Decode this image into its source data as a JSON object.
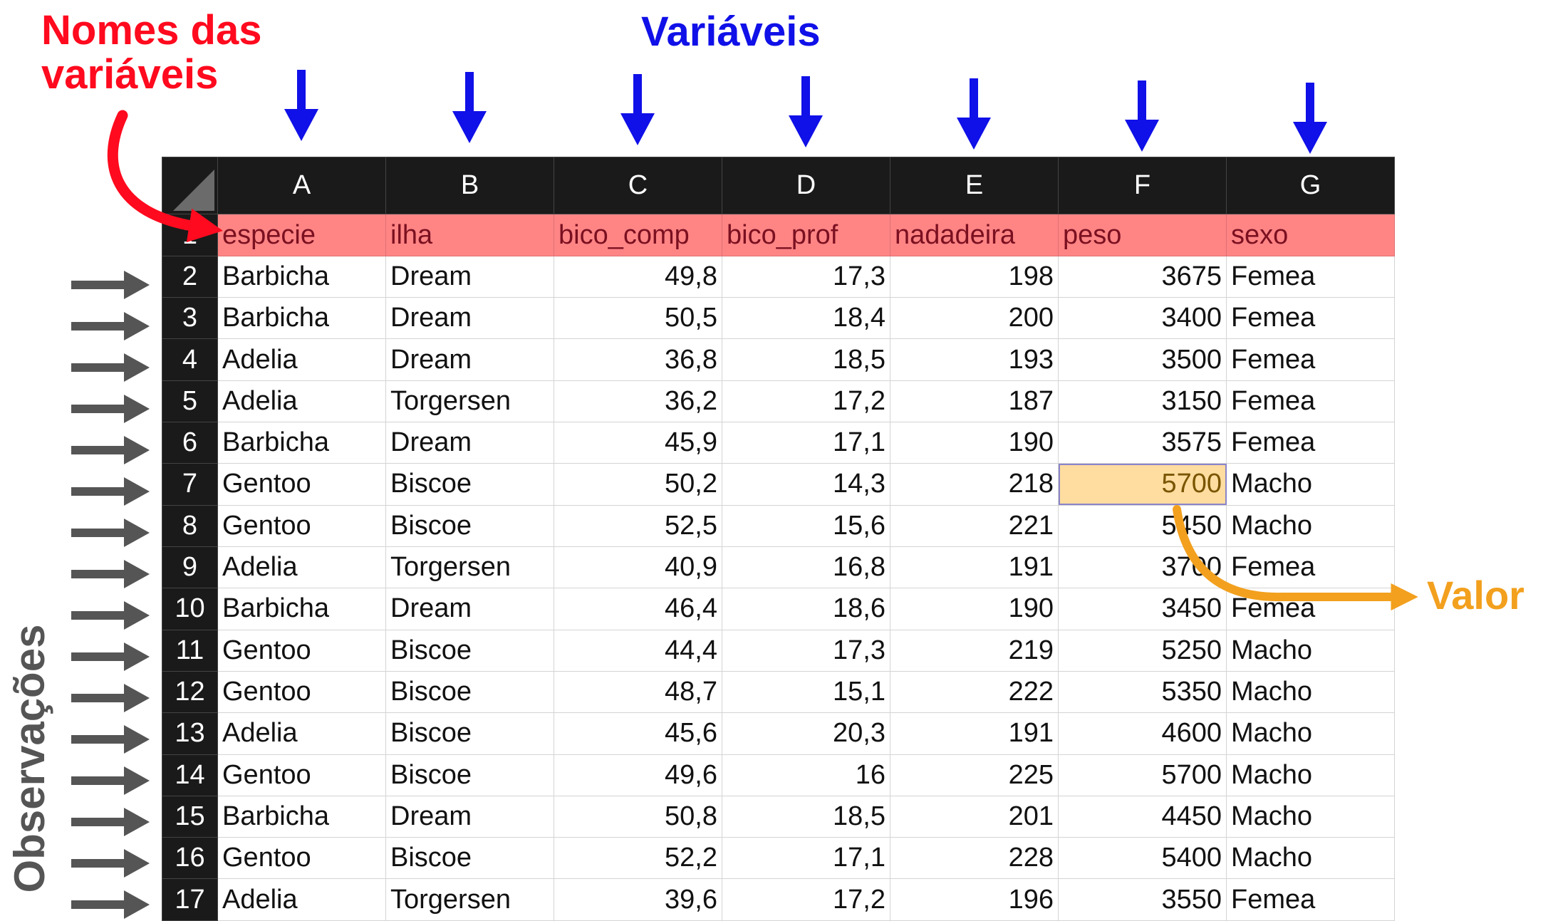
{
  "annotations": {
    "variable_names_line1": "Nomes das",
    "variable_names_line2": "variáveis",
    "variables": "Variáveis",
    "value": "Valor",
    "observations": "Observações"
  },
  "colors": {
    "red_label": "#ff0a1e",
    "blue_label": "#1010e8",
    "orange_label": "#f2a01e",
    "gray_arrow": "#555555",
    "header_row_fill": "#ff8585",
    "selected_cell_fill": "#ffdda0",
    "column_header_fill": "#1a1a1a"
  },
  "spreadsheet": {
    "column_letters": [
      "A",
      "B",
      "C",
      "D",
      "E",
      "F",
      "G"
    ],
    "header_row": {
      "row_number": "1",
      "cells": [
        "especie",
        "ilha",
        "bico_comp",
        "bico_prof",
        "nadadeira",
        "peso",
        "sexo"
      ]
    },
    "rows": [
      {
        "row_number": "2",
        "cells": [
          "Barbicha",
          "Dream",
          "49,8",
          "17,3",
          "198",
          "3675",
          "Femea"
        ]
      },
      {
        "row_number": "3",
        "cells": [
          "Barbicha",
          "Dream",
          "50,5",
          "18,4",
          "200",
          "3400",
          "Femea"
        ]
      },
      {
        "row_number": "4",
        "cells": [
          "Adelia",
          "Dream",
          "36,8",
          "18,5",
          "193",
          "3500",
          "Femea"
        ]
      },
      {
        "row_number": "5",
        "cells": [
          "Adelia",
          "Torgersen",
          "36,2",
          "17,2",
          "187",
          "3150",
          "Femea"
        ]
      },
      {
        "row_number": "6",
        "cells": [
          "Barbicha",
          "Dream",
          "45,9",
          "17,1",
          "190",
          "3575",
          "Femea"
        ]
      },
      {
        "row_number": "7",
        "cells": [
          "Gentoo",
          "Biscoe",
          "50,2",
          "14,3",
          "218",
          "5700",
          "Macho"
        ]
      },
      {
        "row_number": "8",
        "cells": [
          "Gentoo",
          "Biscoe",
          "52,5",
          "15,6",
          "221",
          "5450",
          "Macho"
        ]
      },
      {
        "row_number": "9",
        "cells": [
          "Adelia",
          "Torgersen",
          "40,9",
          "16,8",
          "191",
          "3700",
          "Femea"
        ]
      },
      {
        "row_number": "10",
        "cells": [
          "Barbicha",
          "Dream",
          "46,4",
          "18,6",
          "190",
          "3450",
          "Femea"
        ]
      },
      {
        "row_number": "11",
        "cells": [
          "Gentoo",
          "Biscoe",
          "44,4",
          "17,3",
          "219",
          "5250",
          "Macho"
        ]
      },
      {
        "row_number": "12",
        "cells": [
          "Gentoo",
          "Biscoe",
          "48,7",
          "15,1",
          "222",
          "5350",
          "Macho"
        ]
      },
      {
        "row_number": "13",
        "cells": [
          "Adelia",
          "Biscoe",
          "45,6",
          "20,3",
          "191",
          "4600",
          "Macho"
        ]
      },
      {
        "row_number": "14",
        "cells": [
          "Gentoo",
          "Biscoe",
          "49,6",
          "16",
          "225",
          "5700",
          "Macho"
        ]
      },
      {
        "row_number": "15",
        "cells": [
          "Barbicha",
          "Dream",
          "50,8",
          "18,5",
          "201",
          "4450",
          "Macho"
        ]
      },
      {
        "row_number": "16",
        "cells": [
          "Gentoo",
          "Biscoe",
          "52,2",
          "17,1",
          "228",
          "5400",
          "Macho"
        ]
      },
      {
        "row_number": "17",
        "cells": [
          "Adelia",
          "Torgersen",
          "39,6",
          "17,2",
          "196",
          "3550",
          "Femea"
        ]
      }
    ]
  }
}
